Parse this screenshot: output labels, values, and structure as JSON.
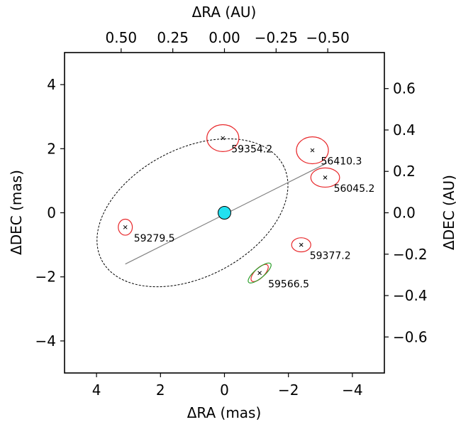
{
  "chart_data": {
    "type": "scatter",
    "title": "",
    "xlabel": "ΔRA (mas)",
    "ylabel": "ΔDEC (mas)",
    "xlim": [
      5,
      -5
    ],
    "ylim": [
      -5,
      5
    ],
    "xticks": [
      {
        "value": 4,
        "label": "4"
      },
      {
        "value": 2,
        "label": "2"
      },
      {
        "value": 0,
        "label": "0"
      },
      {
        "value": -2,
        "label": "−2"
      },
      {
        "value": -4,
        "label": "−4"
      }
    ],
    "yticks": [
      {
        "value": 4,
        "label": "4"
      },
      {
        "value": 2,
        "label": "2"
      },
      {
        "value": 0,
        "label": "0"
      },
      {
        "value": -2,
        "label": "−2"
      },
      {
        "value": -4,
        "label": "−4"
      }
    ],
    "secondary_x": {
      "label": "ΔRA (AU)",
      "ticks": [
        {
          "value": 3.23,
          "label": "0.50"
        },
        {
          "value": 1.615,
          "label": "0.25"
        },
        {
          "value": 0,
          "label": "0.00"
        },
        {
          "value": -1.615,
          "label": "−0.25"
        },
        {
          "value": -3.23,
          "label": "−0.50"
        }
      ]
    },
    "secondary_y": {
      "label": "ΔDEC (AU)",
      "ticks": [
        {
          "value": 3.876,
          "label": "0.6"
        },
        {
          "value": 2.584,
          "label": "0.4"
        },
        {
          "value": 1.292,
          "label": "0.2"
        },
        {
          "value": 0,
          "label": "0.0"
        },
        {
          "value": -1.292,
          "label": "−0.2"
        },
        {
          "value": -2.584,
          "label": "−0.4"
        },
        {
          "value": -3.876,
          "label": "−0.6"
        }
      ]
    },
    "orbit": {
      "center": [
        1.0,
        0.0
      ],
      "semi_major": 3.2,
      "semi_minor": 2.0,
      "angle_deg": 27.5,
      "style": "dashed"
    },
    "line_of_nodes": {
      "x": [
        3.1,
        -3.2
      ],
      "y": [
        -1.6,
        1.55
      ]
    },
    "primary": {
      "x": 0,
      "y": 0,
      "color": "#22e0f0"
    },
    "points": [
      {
        "label": "59354.2",
        "x": 0.05,
        "y": 2.33,
        "err_rx": 0.5,
        "err_ry": 0.42,
        "err_angle": 0
      },
      {
        "label": "56410.3",
        "x": -2.75,
        "y": 1.95,
        "err_rx": 0.5,
        "err_ry": 0.42,
        "err_angle": 0
      },
      {
        "label": "56045.2",
        "x": -3.15,
        "y": 1.1,
        "err_rx": 0.45,
        "err_ry": 0.3,
        "err_angle": 0
      },
      {
        "label": "59279.5",
        "x": 3.1,
        "y": -0.45,
        "err_rx": 0.22,
        "err_ry": 0.25,
        "err_angle": 0
      },
      {
        "label": "59377.2",
        "x": -2.4,
        "y": -1.0,
        "err_rx": 0.3,
        "err_ry": 0.22,
        "err_angle": 0
      },
      {
        "label": "59566.5",
        "x": -1.1,
        "y": -1.88,
        "err_rx": 0.35,
        "err_ry": 0.15,
        "err_angle": -45,
        "err2_rx": 0.45,
        "err2_ry": 0.15,
        "err2_angle": -40
      }
    ],
    "colors": {
      "error_ellipse": "#e8282b",
      "alt_ellipse": "#2ea02c",
      "orbit": "#000000",
      "node_line": "#808080"
    }
  }
}
